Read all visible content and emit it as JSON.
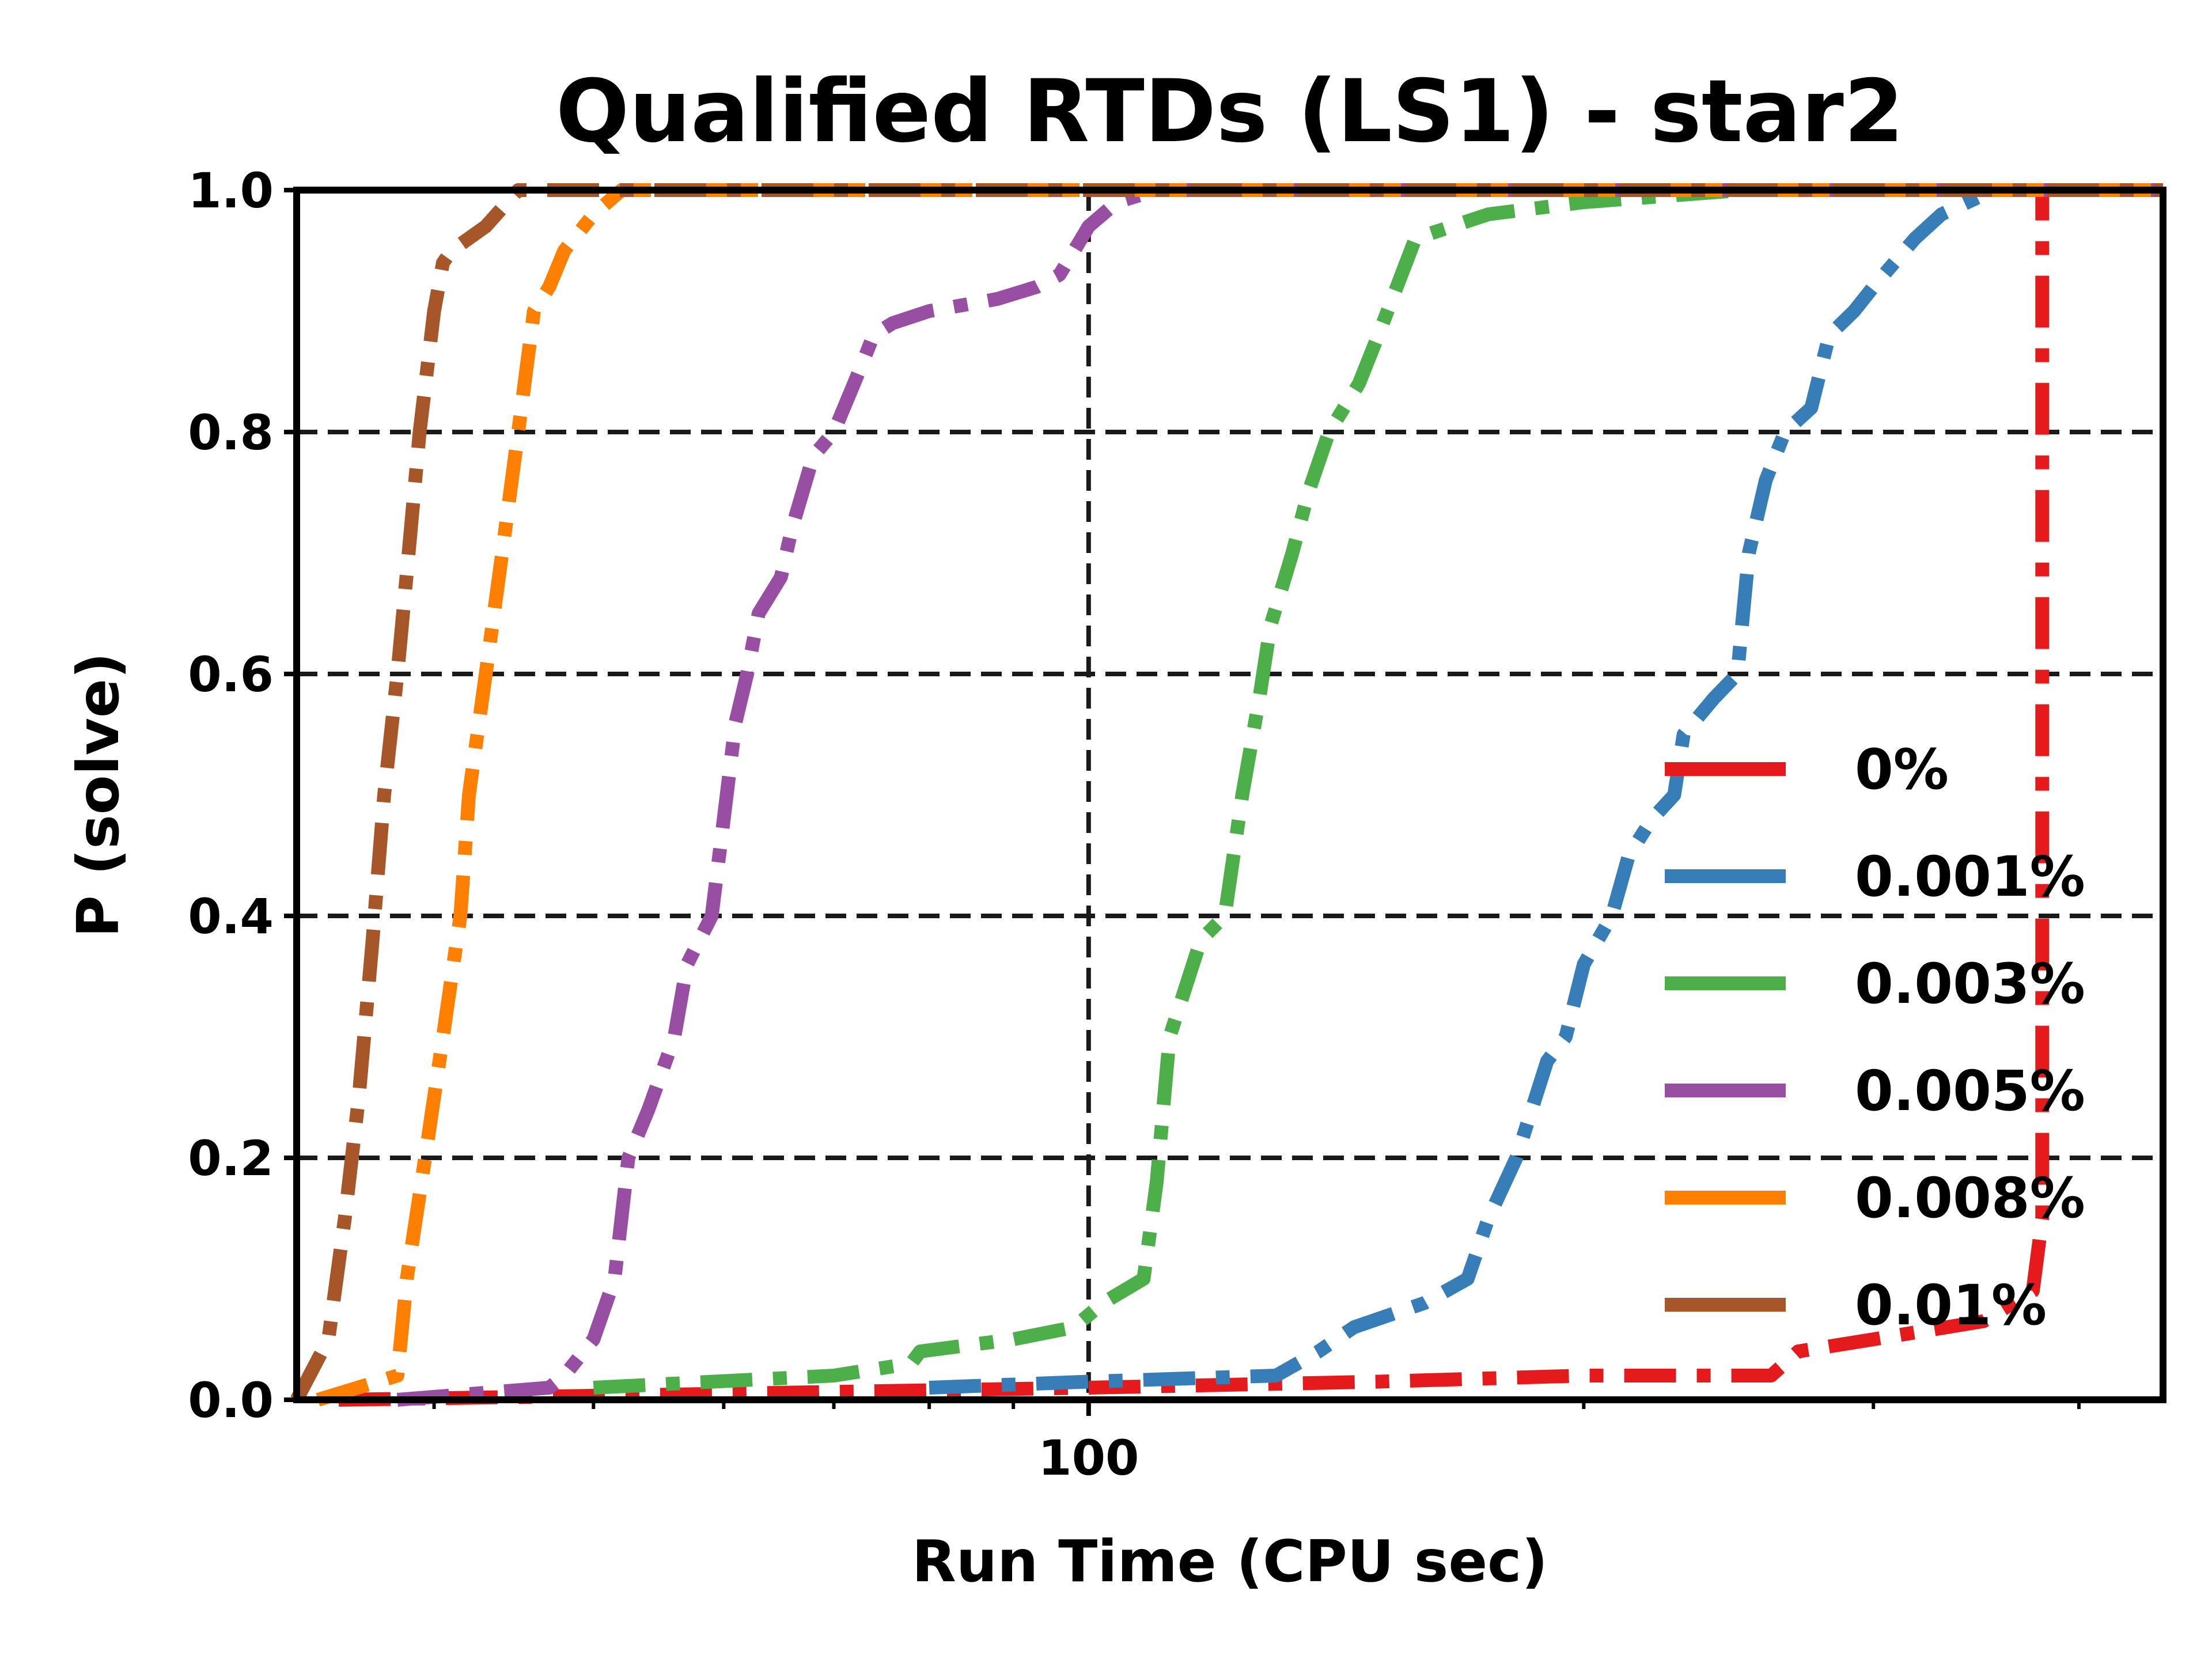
{
  "chart_data": {
    "type": "line",
    "title": "Qualified RTDs (LS1) - star2",
    "xlabel": "Run Time (CPU sec)",
    "ylabel": "P (solve)",
    "xscale": "log",
    "xlim": [
      33,
      450
    ],
    "ylim": [
      0,
      1
    ],
    "x_ticks": [
      100
    ],
    "x_tick_labels": [
      "100"
    ],
    "y_ticks": [
      0.0,
      0.2,
      0.4,
      0.6,
      0.8,
      1.0
    ],
    "y_tick_labels": [
      "0.0",
      "0.2",
      "0.4",
      "0.6",
      "0.8",
      "1.0"
    ],
    "grid": true,
    "legend_position": "center-right",
    "series": [
      {
        "name": "0%",
        "color": "#e41a1c",
        "x": [
          35,
          60,
          100,
          150,
          200,
          260,
          270,
          300,
          350,
          375,
          380,
          380,
          380,
          380,
          380,
          450
        ],
        "y": [
          0.0,
          0.005,
          0.01,
          0.015,
          0.02,
          0.02,
          0.04,
          0.05,
          0.065,
          0.09,
          0.15,
          0.5,
          0.8,
          0.95,
          1.0,
          1.0
        ]
      },
      {
        "name": "0.001%",
        "color": "#377eb8",
        "x": [
          80,
          100,
          130,
          138,
          145,
          160,
          170,
          175,
          182,
          190,
          195,
          200,
          208,
          213,
          220,
          227,
          230,
          240,
          248,
          252,
          258,
          265,
          275,
          282,
          292,
          300,
          318,
          330,
          355,
          375,
          450
        ],
        "y": [
          0.01,
          0.015,
          0.02,
          0.04,
          0.06,
          0.08,
          0.1,
          0.15,
          0.2,
          0.28,
          0.3,
          0.36,
          0.4,
          0.45,
          0.48,
          0.5,
          0.55,
          0.58,
          0.6,
          0.7,
          0.76,
          0.8,
          0.82,
          0.88,
          0.9,
          0.92,
          0.96,
          0.98,
          1.0,
          1.0,
          1.0
        ]
      },
      {
        "name": "0.003%",
        "color": "#4daf4a",
        "x": [
          50,
          70,
          78,
          79,
          90,
          98,
          102,
          108,
          110,
          112,
          117,
          121,
          124,
          127,
          129,
          133,
          136,
          140,
          146,
          150,
          158,
          175,
          200,
          250,
          450
        ],
        "y": [
          0.01,
          0.02,
          0.03,
          0.04,
          0.05,
          0.06,
          0.08,
          0.1,
          0.18,
          0.3,
          0.38,
          0.4,
          0.5,
          0.58,
          0.64,
          0.7,
          0.75,
          0.8,
          0.84,
          0.88,
          0.96,
          0.98,
          0.99,
          1.0,
          1.0
        ]
      },
      {
        "name": "0.005%",
        "color": "#984ea3",
        "x": [
          38,
          47,
          48,
          50,
          51.5,
          52.5,
          54,
          56,
          57,
          59,
          60,
          61,
          62,
          63,
          65,
          66,
          68,
          70,
          72,
          73,
          74,
          76,
          80,
          88,
          93,
          96,
          98,
          100,
          102,
          104,
          110,
          140,
          450
        ],
        "y": [
          0.0,
          0.01,
          0.02,
          0.05,
          0.1,
          0.2,
          0.24,
          0.3,
          0.36,
          0.4,
          0.48,
          0.56,
          0.6,
          0.65,
          0.68,
          0.72,
          0.78,
          0.8,
          0.84,
          0.86,
          0.88,
          0.89,
          0.9,
          0.91,
          0.92,
          0.93,
          0.95,
          0.97,
          0.98,
          0.99,
          1.0,
          1.0,
          1.0
        ]
      },
      {
        "name": "0.008%",
        "color": "#ff7f00",
        "x": [
          34,
          38,
          38.5,
          39.5,
          40.5,
          41.5,
          42,
          43,
          44,
          45,
          46,
          47,
          48,
          50,
          52,
          450
        ],
        "y": [
          0.0,
          0.02,
          0.1,
          0.2,
          0.3,
          0.4,
          0.5,
          0.6,
          0.7,
          0.8,
          0.9,
          0.92,
          0.95,
          0.98,
          1.0,
          1.0
        ]
      },
      {
        "name": "0.01%",
        "color": "#a65628",
        "x": [
          33,
          34.5,
          35.3,
          36,
          36.7,
          37.3,
          38,
          38.6,
          39.2,
          40,
          40.5,
          41,
          43,
          45,
          450
        ],
        "y": [
          0.0,
          0.05,
          0.15,
          0.25,
          0.38,
          0.5,
          0.6,
          0.7,
          0.8,
          0.9,
          0.94,
          0.95,
          0.97,
          1.0,
          1.0
        ]
      }
    ]
  }
}
